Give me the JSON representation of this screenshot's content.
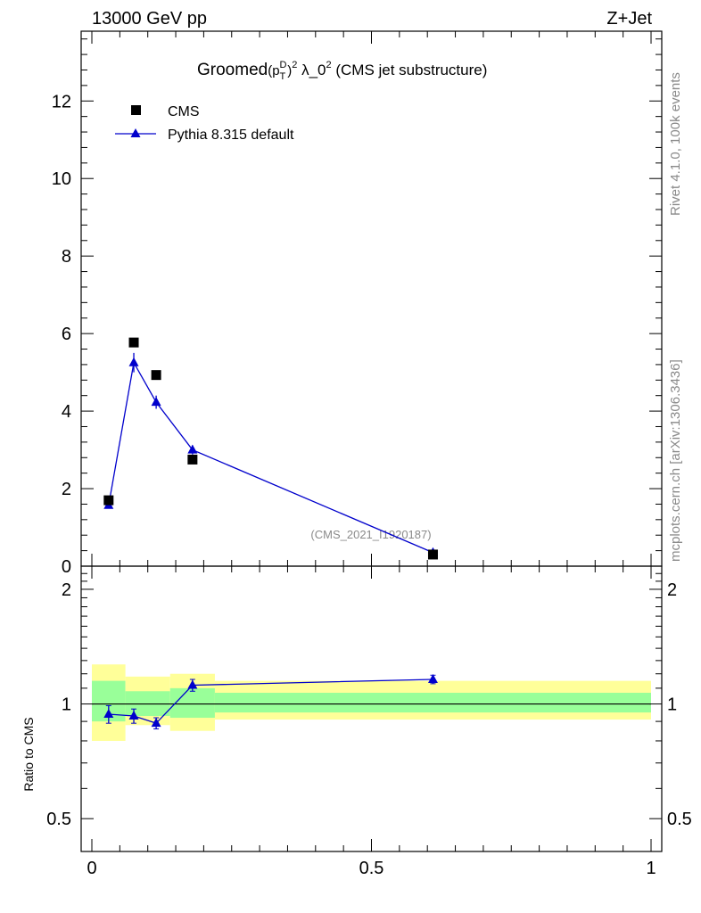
{
  "header": {
    "energy_label": "13000 GeV pp",
    "process_label": "Z+Jet"
  },
  "side_labels": {
    "rivet": "Rivet 4.1.0,  100k events",
    "mcplots": "mcplots.cern.ch [arXiv:1306.3436]"
  },
  "chart_data": {
    "type": "scatter",
    "title": "Groomed(p_T^D)^2 λ_0^2 (CMS jet substructure)",
    "title_parts": {
      "lead": "Groomed",
      "p": "(p",
      "sup_D": "D",
      "sub_T": "T",
      "close": ")",
      "sup_2": "2",
      "lambda": " λ_0",
      "sup_2b": "2",
      "tail": " (CMS jet substructure)"
    },
    "watermark": "(CMS_2021_I1920187)",
    "legend": [
      {
        "name": "CMS",
        "marker": "square",
        "color": "#000000"
      },
      {
        "name": "Pythia 8.315 default",
        "marker": "triangle",
        "color": "#0000cc"
      }
    ],
    "main_panel": {
      "xlim": [
        0,
        1
      ],
      "ylim": [
        0,
        13.8
      ],
      "ytick_labels": [
        "0",
        "2",
        "4",
        "6",
        "8",
        "10",
        "12"
      ],
      "ytick_values": [
        0,
        2,
        4,
        6,
        8,
        10,
        12
      ],
      "series": [
        {
          "name": "CMS",
          "x": [
            0.03,
            0.075,
            0.115,
            0.18,
            0.61
          ],
          "y": [
            1.7,
            5.77,
            4.93,
            2.75,
            0.3
          ]
        },
        {
          "name": "Pythia 8.315 default",
          "x": [
            0.03,
            0.075,
            0.115,
            0.18,
            0.61
          ],
          "y": [
            1.57,
            5.25,
            4.23,
            3.0,
            0.35
          ],
          "yerr": [
            0.05,
            0.25,
            0.17,
            0.12,
            0.02
          ]
        }
      ]
    },
    "ratio_panel": {
      "ylabel": "Ratio to CMS",
      "ylim": [
        0.41,
        2.3
      ],
      "ytick_labels": [
        "0.5",
        "1",
        "2"
      ],
      "ytick_values": [
        0.5,
        1,
        2
      ],
      "xtick_labels": [
        "0",
        "0.5",
        "1"
      ],
      "xtick_values": [
        0,
        0.5,
        1
      ],
      "bands": [
        {
          "x0": 0.0,
          "x1": 0.06,
          "stat_lo": 0.9,
          "stat_hi": 1.15,
          "tot_lo": 0.8,
          "tot_hi": 1.27
        },
        {
          "x0": 0.06,
          "x1": 0.14,
          "stat_lo": 0.93,
          "stat_hi": 1.08,
          "tot_lo": 0.88,
          "tot_hi": 1.18
        },
        {
          "x0": 0.14,
          "x1": 0.22,
          "stat_lo": 0.92,
          "stat_hi": 1.1,
          "tot_lo": 0.85,
          "tot_hi": 1.2
        },
        {
          "x0": 0.22,
          "x1": 1.0,
          "stat_lo": 0.95,
          "stat_hi": 1.07,
          "tot_lo": 0.91,
          "tot_hi": 1.15
        }
      ],
      "series": [
        {
          "name": "Pythia 8.315 default",
          "x": [
            0.03,
            0.075,
            0.115,
            0.18,
            0.61
          ],
          "y": [
            0.94,
            0.93,
            0.89,
            1.12,
            1.16
          ],
          "yerr": [
            0.05,
            0.04,
            0.03,
            0.04,
            0.03
          ]
        }
      ]
    },
    "colors": {
      "data": "#000000",
      "mc": "#0000cc",
      "stat_band": "#99ff99",
      "total_band": "#ffff99",
      "watermark": "#8a8a8a"
    }
  }
}
